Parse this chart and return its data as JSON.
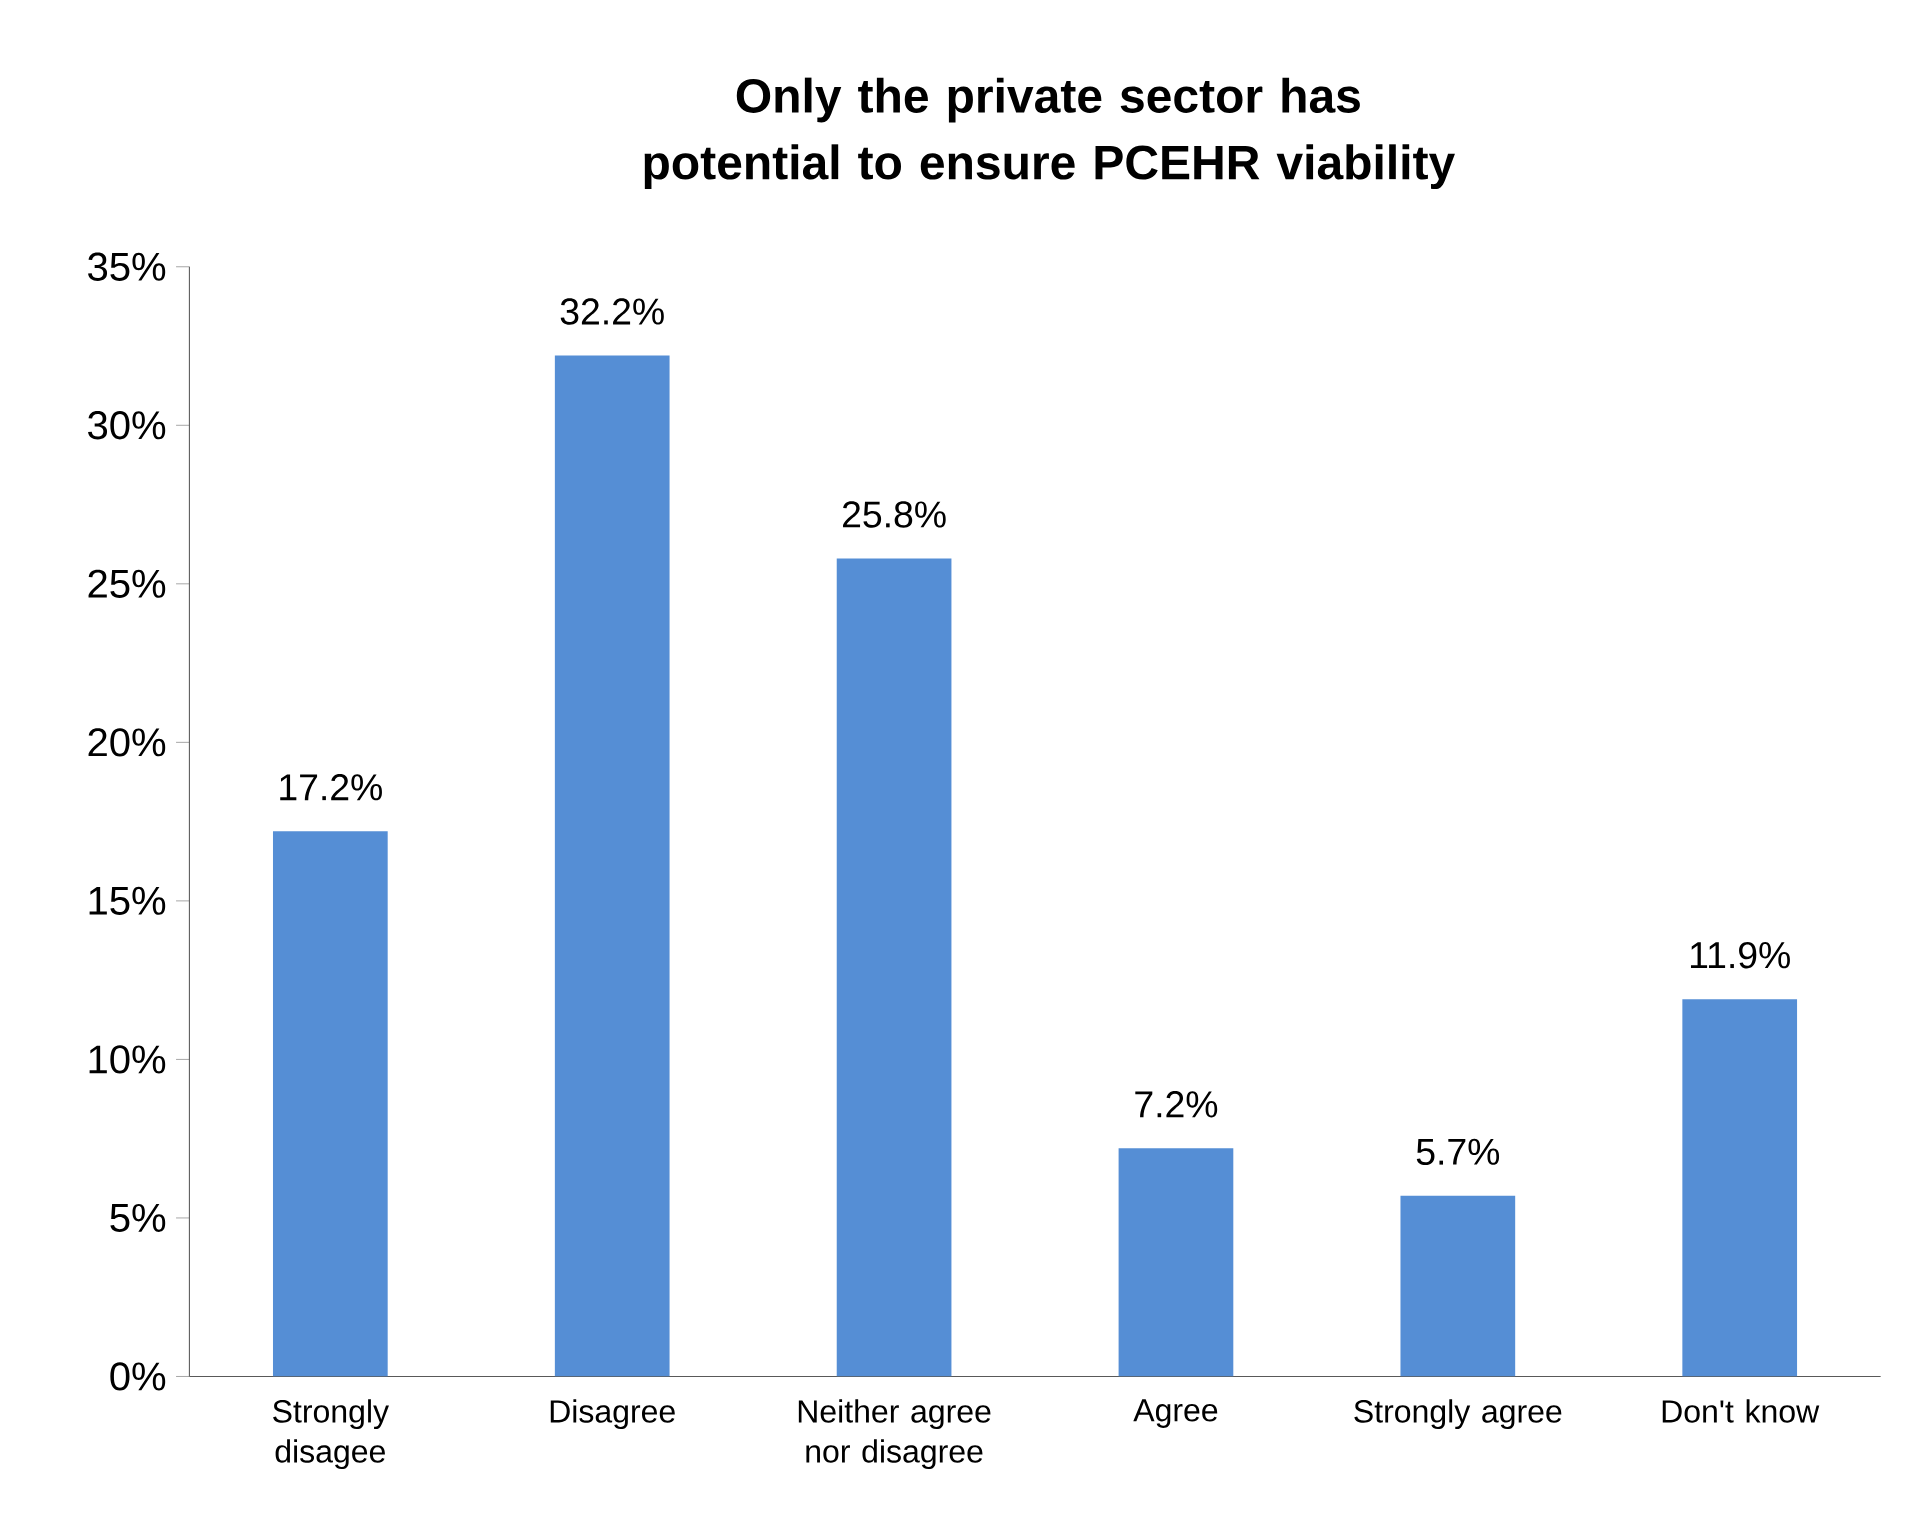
{
  "chart_data": {
    "type": "bar",
    "title": "Only the private sector has potential to ensure PCEHR viability",
    "categories": [
      "Strongly disagee",
      "Disagree",
      "Neither agree nor disagree",
      "Agree",
      "Strongly agree",
      "Don't know"
    ],
    "values": [
      17.2,
      32.2,
      25.8,
      7.2,
      5.7,
      11.9
    ],
    "value_labels": [
      "17.2%",
      "32.2%",
      "25.8%",
      "7.2%",
      "5.7%",
      "11.9%"
    ],
    "color": "#558ed5",
    "ylim": [
      0,
      35
    ],
    "yticks": [
      {
        "value": 0,
        "label": "0%"
      },
      {
        "value": 5,
        "label": "5%"
      },
      {
        "value": 10,
        "label": "10%"
      },
      {
        "value": 15,
        "label": "15%"
      },
      {
        "value": 20,
        "label": "20%"
      },
      {
        "value": 25,
        "label": "25%"
      },
      {
        "value": 30,
        "label": "30%"
      },
      {
        "value": 35,
        "label": "35%"
      }
    ],
    "grid": false
  }
}
